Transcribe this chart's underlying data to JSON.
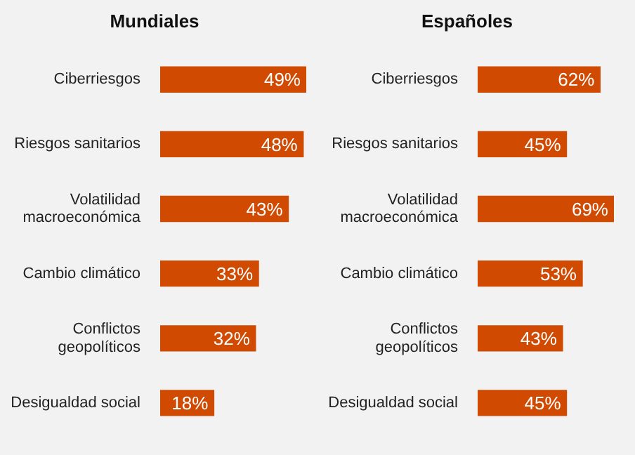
{
  "chart_data": [
    {
      "type": "bar",
      "orientation": "horizontal",
      "title": "Mundiales",
      "categories": [
        "Ciberriesgos",
        "Riesgos sanitarios",
        "Volatilidad macroeconómica",
        "Cambio climático",
        "Conflictos geopolíticos",
        "Desigualdad social"
      ],
      "values": [
        49,
        48,
        43,
        33,
        32,
        18
      ],
      "color": "#d04a02",
      "data_labels": true,
      "value_labels": [
        "49%",
        "48%",
        "43%",
        "33%",
        "32%",
        "18%"
      ]
    },
    {
      "type": "bar",
      "orientation": "horizontal",
      "title": "Españoles",
      "categories": [
        "Ciberriesgos",
        "Riesgos sanitarios",
        "Volatilidad macroeconómica",
        "Cambio climático",
        "Conflictos geopolíticos",
        "Desigualdad social"
      ],
      "values": [
        62,
        45,
        69,
        53,
        43,
        45
      ],
      "color": "#d04a02",
      "data_labels": true,
      "value_labels": [
        "62%",
        "45%",
        "69%",
        "53%",
        "43%",
        "45%"
      ]
    }
  ]
}
